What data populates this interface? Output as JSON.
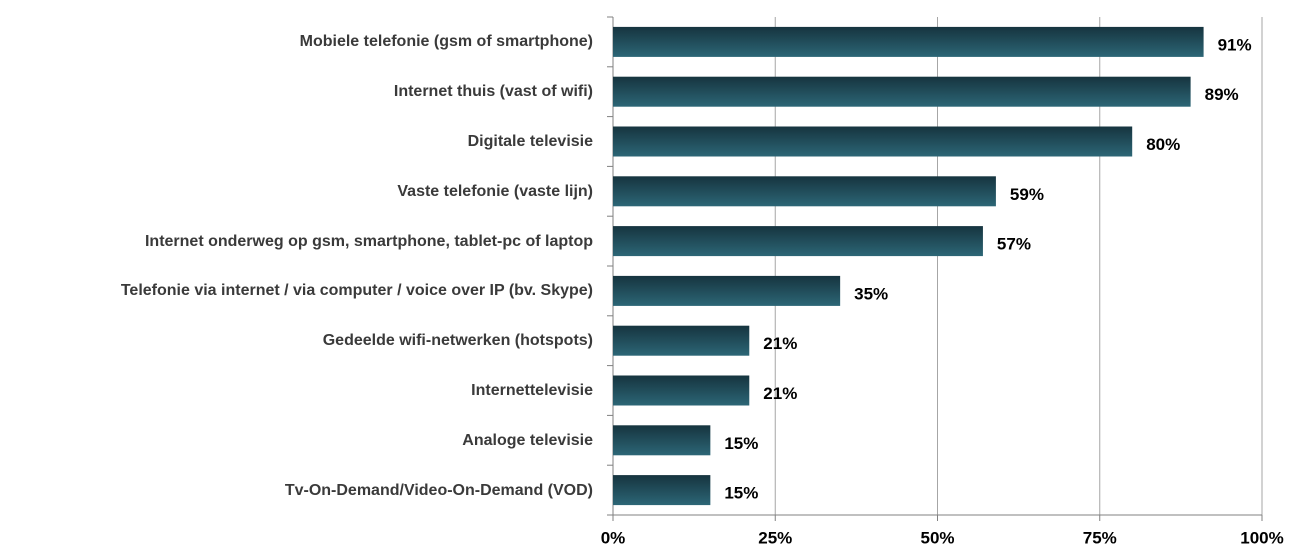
{
  "chart_data": {
    "type": "bar",
    "orientation": "horizontal",
    "categories": [
      "Mobiele telefonie (gsm of smartphone)",
      "Internet thuis (vast of wifi)",
      "Digitale televisie",
      "Vaste telefonie (vaste lijn)",
      "Internet onderweg op gsm, smartphone, tablet-pc of laptop",
      "Telefonie via internet / via computer / voice over IP (bv. Skype)",
      "Gedeelde  wifi-netwerken (hotspots)",
      "Internettelevisie",
      "Analoge televisie",
      "Tv-On-Demand/Video-On-Demand (VOD)"
    ],
    "values": [
      91,
      89,
      80,
      59,
      57,
      35,
      21,
      21,
      15,
      15
    ],
    "value_labels": [
      "91%",
      "89%",
      "80%",
      "59%",
      "57%",
      "35%",
      "21%",
      "21%",
      "15%",
      "15%"
    ],
    "color": "#1f4c5a",
    "xlim": [
      0,
      100
    ],
    "xticks": [
      {
        "value": 0,
        "label": "0%"
      },
      {
        "value": 25,
        "label": "25%"
      },
      {
        "value": 50,
        "label": "50%"
      },
      {
        "value": 75,
        "label": "75%"
      },
      {
        "value": 100,
        "label": "100%"
      }
    ],
    "grid": true
  }
}
